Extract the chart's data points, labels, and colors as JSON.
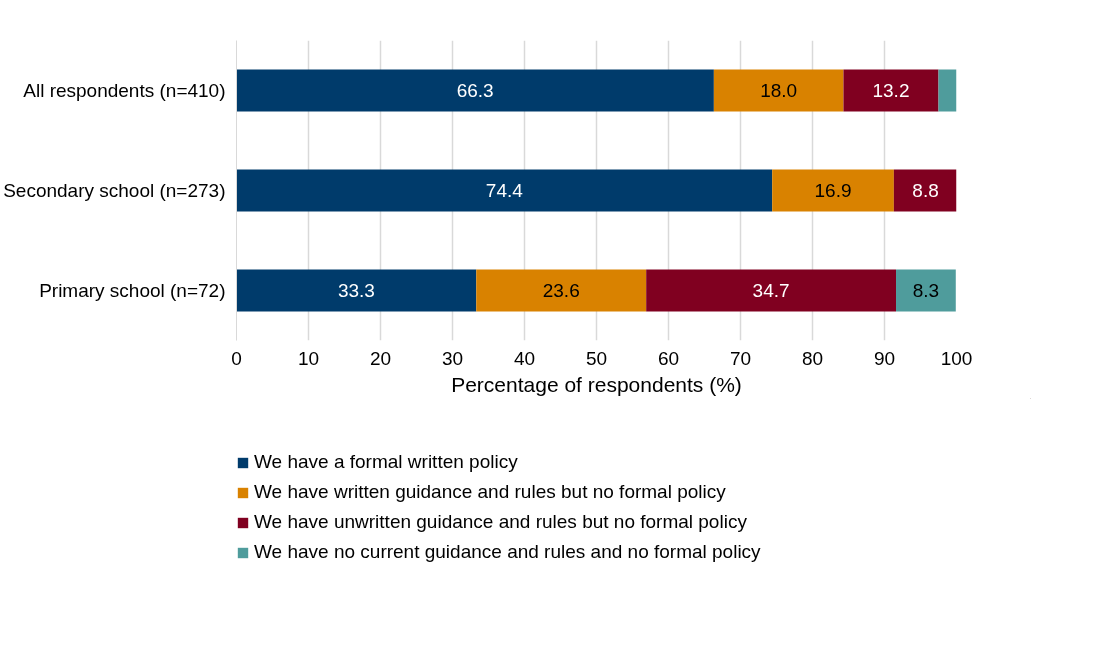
{
  "chart_data": {
    "type": "bar",
    "orientation": "horizontal",
    "stacked": true,
    "categories": [
      "All respondents (n=410)",
      "Secondary school (n=273)",
      "Primary school (n=72)"
    ],
    "series": [
      {
        "name": "We have a formal written policy",
        "color": "#003b6b",
        "values": [
          66.3,
          74.4,
          33.3
        ],
        "value_labels": [
          "66.3",
          "74.4",
          "33.3"
        ]
      },
      {
        "name": "We have written guidance and rules but no formal policy",
        "color": "#d98200",
        "values": [
          18.0,
          16.9,
          23.6
        ],
        "value_labels": [
          "18.0",
          "16.9",
          "23.6"
        ]
      },
      {
        "name": "We have unwritten guidance and rules but no formal policy",
        "color": "#800020",
        "values": [
          13.2,
          8.8,
          34.7
        ],
        "value_labels": [
          "13.2",
          "8.8",
          "34.7"
        ]
      },
      {
        "name": "We have no current guidance and rules and no formal policy",
        "color": "#4f9c9c",
        "values": [
          2.5,
          null,
          8.3
        ],
        "value_labels": [
          null,
          null,
          "8.3"
        ]
      }
    ],
    "xlabel": "Percentage of respondents (%)",
    "xlim": [
      0,
      100
    ],
    "xticks": [
      0,
      10,
      20,
      30,
      40,
      50,
      60,
      70,
      80,
      90,
      100
    ],
    "grid": "x",
    "legend": "bottom"
  }
}
